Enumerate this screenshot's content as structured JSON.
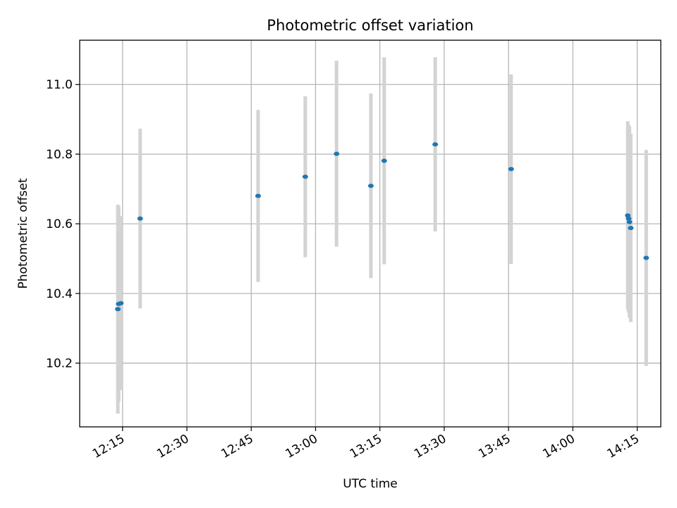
{
  "chart_data": {
    "type": "scatter",
    "title": "Photometric offset variation",
    "xlabel": "UTC time",
    "ylabel": "Photometric offset",
    "x_unit": "minutes after midnight UTC",
    "xlim": [
      725.0,
      860.5
    ],
    "ylim": [
      10.017,
      11.127
    ],
    "x_ticks": [
      {
        "value": 735,
        "label": "12:15"
      },
      {
        "value": 750,
        "label": "12:30"
      },
      {
        "value": 765,
        "label": "12:45"
      },
      {
        "value": 780,
        "label": "13:00"
      },
      {
        "value": 795,
        "label": "13:15"
      },
      {
        "value": 810,
        "label": "13:30"
      },
      {
        "value": 825,
        "label": "13:45"
      },
      {
        "value": 840,
        "label": "14:00"
      },
      {
        "value": 855,
        "label": "14:15"
      }
    ],
    "y_ticks": [
      {
        "value": 10.2,
        "label": "10.2"
      },
      {
        "value": 10.4,
        "label": "10.4"
      },
      {
        "value": 10.6,
        "label": "10.6"
      },
      {
        "value": 10.8,
        "label": "10.8"
      },
      {
        "value": 11.0,
        "label": "11.0"
      }
    ],
    "grid": true,
    "colors": {
      "point": "#1f77b4",
      "errorbar": "#d3d3d3"
    },
    "series": [
      {
        "points": [
          {
            "x": 733.9,
            "y": 10.355,
            "yerr": 0.3
          },
          {
            "x": 734.1,
            "y": 10.37,
            "yerr": 0.28
          },
          {
            "x": 734.6,
            "y": 10.372,
            "yerr": 0.25
          },
          {
            "x": 739.1,
            "y": 10.615,
            "yerr": 0.258
          },
          {
            "x": 766.6,
            "y": 10.68,
            "yerr": 0.247
          },
          {
            "x": 777.6,
            "y": 10.735,
            "yerr": 0.231
          },
          {
            "x": 784.9,
            "y": 10.801,
            "yerr": 0.267
          },
          {
            "x": 792.9,
            "y": 10.709,
            "yerr": 0.265
          },
          {
            "x": 796.0,
            "y": 10.781,
            "yerr": 0.297
          },
          {
            "x": 807.9,
            "y": 10.828,
            "yerr": 0.25
          },
          {
            "x": 825.6,
            "y": 10.757,
            "yerr": 0.272
          },
          {
            "x": 852.8,
            "y": 10.624,
            "yerr": 0.27
          },
          {
            "x": 853.0,
            "y": 10.615,
            "yerr": 0.27
          },
          {
            "x": 853.2,
            "y": 10.605,
            "yerr": 0.275
          },
          {
            "x": 853.5,
            "y": 10.588,
            "yerr": 0.27
          },
          {
            "x": 857.1,
            "y": 10.502,
            "yerr": 0.31
          }
        ]
      }
    ]
  }
}
